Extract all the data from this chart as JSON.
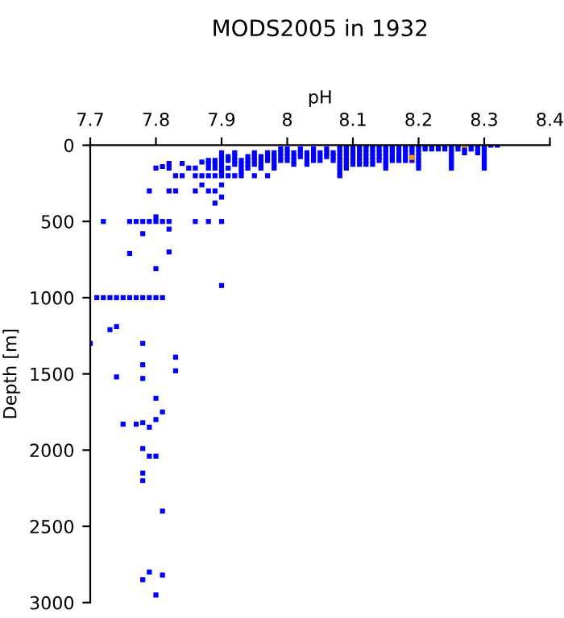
{
  "chart_data": {
    "type": "scatter",
    "title": "MODS2005 in 1932",
    "xlabel": "pH",
    "ylabel": "Depth [m]",
    "xlim": [
      7.7,
      8.4
    ],
    "xticks": [
      7.7,
      7.8,
      7.9,
      8,
      8.1,
      8.2,
      8.3,
      8.4
    ],
    "ylim": [
      3000,
      0
    ],
    "yticks": [
      0,
      500,
      1000,
      1500,
      2000,
      2500,
      3000
    ],
    "marker": "square",
    "grid": false,
    "series": [
      {
        "color": "#0000ff",
        "x": [
          7.7,
          7.73,
          7.74,
          7.78,
          7.83,
          7.83,
          7.78,
          7.74,
          7.78,
          7.8,
          7.81,
          7.8,
          7.75,
          7.77,
          7.78,
          7.79,
          7.78,
          7.79,
          7.8,
          7.78,
          7.78,
          7.81,
          7.79,
          7.81,
          7.78,
          7.8,
          7.71,
          7.72,
          7.73,
          7.74,
          7.75,
          7.76,
          7.77,
          7.78,
          7.79,
          7.8,
          7.81,
          7.72,
          7.76,
          7.77,
          7.78,
          7.79,
          7.8,
          7.81,
          7.82,
          7.86,
          7.88,
          7.9,
          7.8,
          7.82,
          7.78,
          7.76,
          7.82,
          7.8,
          7.9,
          7.79,
          7.82,
          7.83,
          7.86,
          7.87,
          7.88,
          7.89,
          7.9,
          7.9,
          7.89,
          7.83,
          7.84,
          7.86,
          7.87,
          7.88,
          7.89,
          7.91,
          7.92,
          7.93,
          7.95,
          7.97,
          7.8,
          7.81,
          7.82,
          7.82,
          7.84,
          7.85,
          7.86,
          7.87,
          7.88,
          7.88,
          7.88,
          7.89,
          7.89,
          7.89,
          7.9,
          7.9,
          7.9,
          7.9,
          7.9,
          7.9,
          7.9,
          7.91,
          7.91,
          7.91,
          7.92,
          7.92,
          7.92,
          7.92,
          7.93,
          7.93,
          7.93,
          7.93,
          7.94,
          7.94,
          7.94,
          7.94,
          7.95,
          7.95,
          7.95,
          7.95,
          7.96,
          7.96,
          7.96,
          7.96,
          7.97,
          7.97,
          7.97,
          7.98,
          7.98,
          7.98,
          7.98,
          7.98,
          7.99,
          7.99,
          7.99,
          7.99,
          8.0,
          8.0,
          8.0,
          8.0,
          8.01,
          8.01,
          8.01,
          8.01,
          8.02,
          8.02,
          8.02,
          8.03,
          8.03,
          8.03,
          8.03,
          8.04,
          8.04,
          8.04,
          8.04,
          8.05,
          8.05,
          8.05,
          8.06,
          8.06,
          8.06,
          8.07,
          8.07,
          8.07,
          8.08,
          8.08,
          8.08,
          8.08,
          8.08,
          8.08,
          8.08,
          8.08,
          8.08,
          8.09,
          8.09,
          8.09,
          8.09,
          8.09,
          8.09,
          8.09,
          8.1,
          8.1,
          8.1,
          8.1,
          8.1,
          8.1,
          8.11,
          8.11,
          8.11,
          8.11,
          8.11,
          8.11,
          8.12,
          8.12,
          8.12,
          8.12,
          8.12,
          8.12,
          8.13,
          8.13,
          8.13,
          8.13,
          8.13,
          8.13,
          8.14,
          8.14,
          8.14,
          8.14,
          8.14,
          8.15,
          8.15,
          8.15,
          8.15,
          8.15,
          8.15,
          8.15,
          8.16,
          8.16,
          8.16,
          8.16,
          8.16,
          8.17,
          8.17,
          8.17,
          8.17,
          8.17,
          8.18,
          8.18,
          8.18,
          8.18,
          8.18,
          8.19,
          8.19,
          8.19,
          8.19,
          8.19,
          8.2,
          8.2,
          8.2,
          8.2,
          8.2,
          8.2,
          8.2,
          8.21,
          8.21,
          8.22,
          8.22,
          8.23,
          8.23,
          8.24,
          8.24,
          8.25,
          8.25,
          8.25,
          8.25,
          8.25,
          8.25,
          8.25,
          8.26,
          8.26,
          8.27,
          8.27,
          8.27,
          8.28,
          8.28,
          8.29,
          8.29,
          8.29,
          8.3,
          8.3,
          8.3,
          8.3,
          8.3,
          8.3,
          8.3,
          8.31,
          8.32
        ],
        "values": [
          1300,
          1210,
          1190,
          1300,
          1390,
          1480,
          1440,
          1520,
          1530,
          1660,
          1750,
          1800,
          1830,
          1830,
          1820,
          1850,
          1990,
          2040,
          2040,
          2150,
          2200,
          2400,
          2800,
          2820,
          2850,
          2950,
          1000,
          1000,
          1000,
          1000,
          1000,
          1000,
          1000,
          1000,
          1000,
          1000,
          1000,
          500,
          500,
          500,
          500,
          500,
          500,
          500,
          500,
          500,
          500,
          500,
          470,
          550,
          580,
          710,
          700,
          810,
          920,
          300,
          300,
          300,
          300,
          260,
          300,
          300,
          260,
          340,
          380,
          200,
          200,
          200,
          200,
          200,
          200,
          200,
          200,
          200,
          200,
          200,
          150,
          140,
          120,
          150,
          120,
          150,
          150,
          110,
          100,
          120,
          150,
          100,
          120,
          150,
          50,
          75,
          100,
          125,
          150,
          175,
          200,
          75,
          100,
          150,
          50,
          75,
          100,
          125,
          100,
          125,
          150,
          175,
          75,
          100,
          125,
          150,
          50,
          75,
          100,
          125,
          75,
          100,
          125,
          150,
          50,
          75,
          100,
          50,
          75,
          100,
          125,
          150,
          25,
          50,
          75,
          100,
          25,
          50,
          75,
          100,
          50,
          75,
          100,
          125,
          25,
          50,
          75,
          50,
          75,
          100,
          125,
          25,
          50,
          75,
          100,
          50,
          75,
          100,
          25,
          50,
          75,
          50,
          75,
          100,
          0,
          25,
          50,
          75,
          100,
          125,
          150,
          175,
          200,
          0,
          25,
          50,
          75,
          100,
          125,
          150,
          0,
          25,
          50,
          75,
          100,
          125,
          0,
          25,
          50,
          75,
          100,
          125,
          0,
          25,
          50,
          75,
          100,
          125,
          0,
          25,
          50,
          75,
          100,
          125,
          0,
          25,
          50,
          75,
          100,
          0,
          25,
          50,
          75,
          100,
          125,
          150,
          0,
          25,
          50,
          75,
          100,
          0,
          25,
          50,
          75,
          100,
          0,
          25,
          50,
          75,
          100,
          0,
          25,
          50,
          75,
          100,
          0,
          25,
          50,
          75,
          100,
          125,
          150,
          0,
          25,
          0,
          25,
          0,
          25,
          0,
          25,
          0,
          25,
          50,
          75,
          100,
          125,
          150,
          0,
          25,
          0,
          25,
          50,
          0,
          25,
          0,
          25,
          50,
          0,
          25,
          50,
          75,
          100,
          125,
          150,
          0,
          0
        ]
      },
      {
        "color": "#ff9900",
        "x": [
          8.19,
          8.27
        ],
        "values": [
          80,
          0
        ]
      }
    ]
  }
}
